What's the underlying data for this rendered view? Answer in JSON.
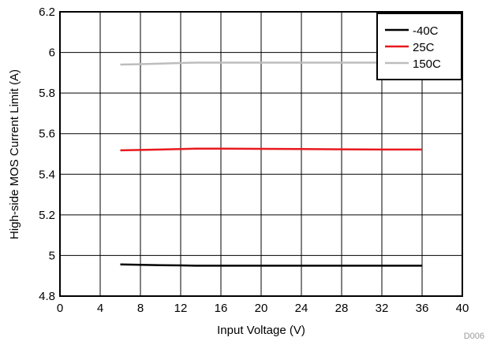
{
  "chart_data": {
    "type": "line",
    "xlabel": "Input Voltage (V)",
    "ylabel": "High-side MOS Current Limit (A)",
    "xlim": [
      0,
      40
    ],
    "ylim": [
      4.8,
      6.2
    ],
    "xticks": [
      0,
      4,
      8,
      12,
      16,
      20,
      24,
      28,
      32,
      36,
      40
    ],
    "yticks": [
      4.8,
      5,
      5.2,
      5.4,
      5.6,
      5.8,
      6,
      6.2
    ],
    "grid": true,
    "legend_position": "top-right",
    "series": [
      {
        "name": "-40C",
        "color": "#000000",
        "x": [
          6,
          8,
          10,
          12,
          13.5,
          16,
          20,
          24,
          28,
          32,
          36
        ],
        "y": [
          4.956,
          4.954,
          4.952,
          4.951,
          4.95,
          4.95,
          4.95,
          4.95,
          4.95,
          4.95,
          4.95
        ]
      },
      {
        "name": "25C",
        "color": "#e8191e",
        "x": [
          6,
          8,
          10,
          12,
          13.5,
          16,
          20,
          24,
          28,
          32,
          36
        ],
        "y": [
          5.518,
          5.52,
          5.522,
          5.524,
          5.526,
          5.526,
          5.525,
          5.524,
          5.523,
          5.522,
          5.522
        ]
      },
      {
        "name": "150C",
        "color": "#bdbdbd",
        "x": [
          6,
          8,
          10,
          12,
          13.5,
          16,
          20,
          24,
          28,
          32,
          36
        ],
        "y": [
          5.94,
          5.942,
          5.945,
          5.948,
          5.95,
          5.95,
          5.95,
          5.95,
          5.95,
          5.95,
          5.95
        ]
      }
    ]
  },
  "footnote": "D006"
}
